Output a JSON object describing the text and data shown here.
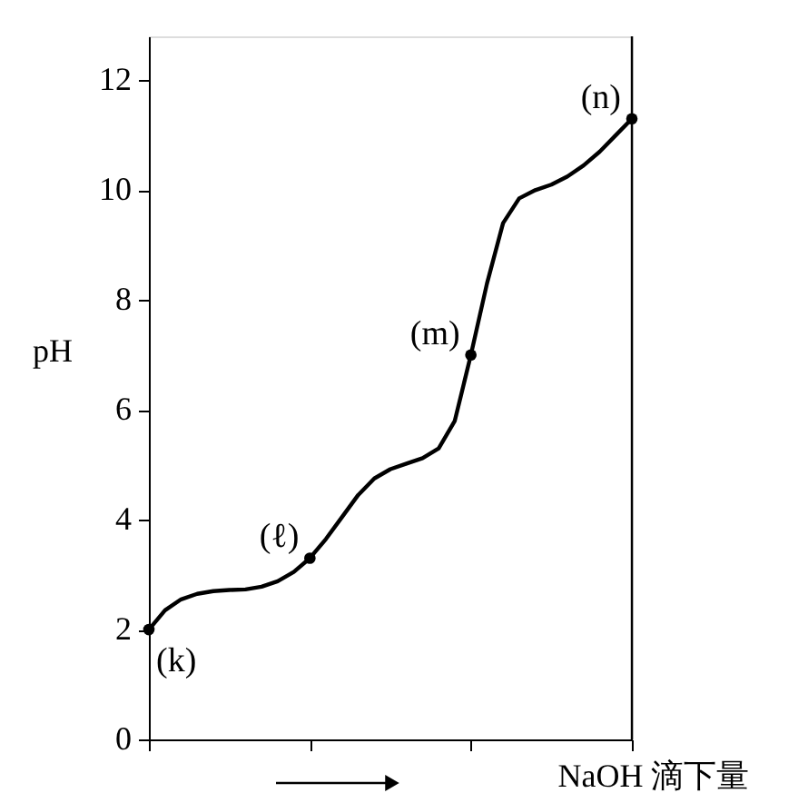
{
  "chart_data": {
    "type": "line",
    "xlabel": "NaOH 滴下量",
    "ylabel": "pH",
    "categories": [
      null,
      null,
      null,
      null,
      null,
      null,
      null,
      null,
      null,
      null,
      null,
      null,
      null,
      null,
      null,
      null,
      null,
      null,
      null,
      null,
      null,
      null,
      null,
      null,
      null,
      null,
      null,
      null,
      null,
      null,
      null
    ],
    "series": [
      {
        "color": "#000000",
        "values": [
          2.0,
          2.35,
          2.55,
          2.65,
          2.7,
          2.72,
          2.73,
          2.78,
          2.88,
          3.05,
          3.3,
          3.65,
          4.05,
          4.45,
          4.75,
          4.92,
          5.02,
          5.12,
          5.3,
          5.8,
          7.0,
          8.3,
          9.4,
          9.85,
          10.0,
          10.1,
          10.25,
          10.45,
          10.7,
          11.0,
          11.3
        ]
      },
      {
        "type": "scatter",
        "marker": "circle",
        "color": "#000000",
        "values": [
          2.0,
          null,
          null,
          null,
          null,
          null,
          null,
          null,
          null,
          null,
          3.3,
          null,
          null,
          null,
          null,
          null,
          null,
          null,
          null,
          null,
          7.0,
          null,
          null,
          null,
          null,
          null,
          null,
          null,
          null,
          null,
          11.3
        ]
      }
    ],
    "annotations": [
      "(k)",
      "(ℓ)",
      "(m)",
      "(n)"
    ],
    "ylim": [
      0,
      12.8
    ],
    "yticks": [
      0,
      2,
      4,
      6,
      8,
      10,
      12
    ],
    "grid": false,
    "line_style": "solid"
  }
}
